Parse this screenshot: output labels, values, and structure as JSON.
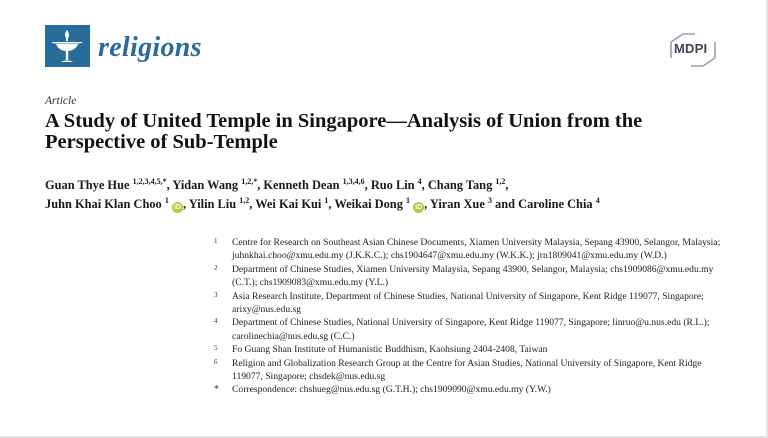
{
  "journal": {
    "name": "religions",
    "logo_icon": "chalice-flame-icon",
    "brand_color": "#286d99"
  },
  "publisher": {
    "name": "MDPI",
    "logo_icon": "mdpi-hexagon-icon",
    "color": "#3d4454"
  },
  "article": {
    "type": "Article",
    "title": "A Study of United Temple in Singapore—Analysis of Union from the Perspective of Sub-Temple"
  },
  "authors": [
    {
      "name": "Guan Thye Hue",
      "sup": "1,2,3,4,5,*",
      "orcid": false,
      "sep": ", "
    },
    {
      "name": "Yidan Wang",
      "sup": "1,2,*",
      "orcid": false,
      "sep": ", "
    },
    {
      "name": "Kenneth Dean",
      "sup": "1,3,4,6",
      "orcid": false,
      "sep": ", "
    },
    {
      "name": "Ruo Lin",
      "sup": "4",
      "orcid": false,
      "sep": ", "
    },
    {
      "name": "Chang Tang",
      "sup": "1,2",
      "orcid": false,
      "sep": ","
    },
    {
      "name": "Juhn Khai Klan Choo",
      "sup": "1",
      "orcid": true,
      "sep": ", "
    },
    {
      "name": "Yilin Liu",
      "sup": "1,2",
      "orcid": false,
      "sep": ", "
    },
    {
      "name": "Wei Kai Kui",
      "sup": "1",
      "orcid": false,
      "sep": ", "
    },
    {
      "name": "Weikai Dong",
      "sup": "1",
      "orcid": true,
      "sep": ", "
    },
    {
      "name": "Yiran Xue",
      "sup": "3",
      "orcid": false,
      "sep": " and "
    },
    {
      "name": "Caroline Chia",
      "sup": "4",
      "orcid": false,
      "sep": ""
    }
  ],
  "orcid_badge": {
    "label": "iD",
    "color": "#a6ce39"
  },
  "affiliations": [
    {
      "num": "1",
      "text": "Centre for Research on Southeast Asian Chinese Documents, Xiamen University Malaysia, Sepang 43900, Selangor, Malaysia; juhnkhai.choo@xmu.edu.my (J.K.K.C.); chs1904647@xmu.edu.my (W.K.K.); jrn1809041@xmu.edu.my (W.D.)"
    },
    {
      "num": "2",
      "text": "Department of Chinese Studies, Xiamen University Malaysia, Sepang 43900, Selangor, Malaysia; chs1909086@xmu.edu.my (C.T.); chs1909083@xmu.edu.my (Y.L.)"
    },
    {
      "num": "3",
      "text": "Asia Research Institute, Department of Chinese Studies, National University of Singapore, Kent Ridge 119077, Singapore; arixy@nus.edu.sg"
    },
    {
      "num": "4",
      "text": "Department of Chinese Studies, National University of Singapore, Kent Ridge 119077, Singapore; linruo@u.nus.edu (R.L.); carolinechia@nus.edu.sg (C.C.)"
    },
    {
      "num": "5",
      "text": "Fo Guang Shan Institute of Humanistic Buddhism, Kaohsiung 2404-2408, Taiwan"
    },
    {
      "num": "6",
      "text": "Religion and Globalization Research Group at the Centre for Asian Studies, National University of Singapore, Kent Ridge 119077, Singapore; chsdek@nus.edu.sg"
    },
    {
      "num": "*",
      "text": "Correspondence: chshueg@nus.edu.sg (G.T.H.); chs1909090@xmu.edu.my (Y.W.)"
    }
  ]
}
